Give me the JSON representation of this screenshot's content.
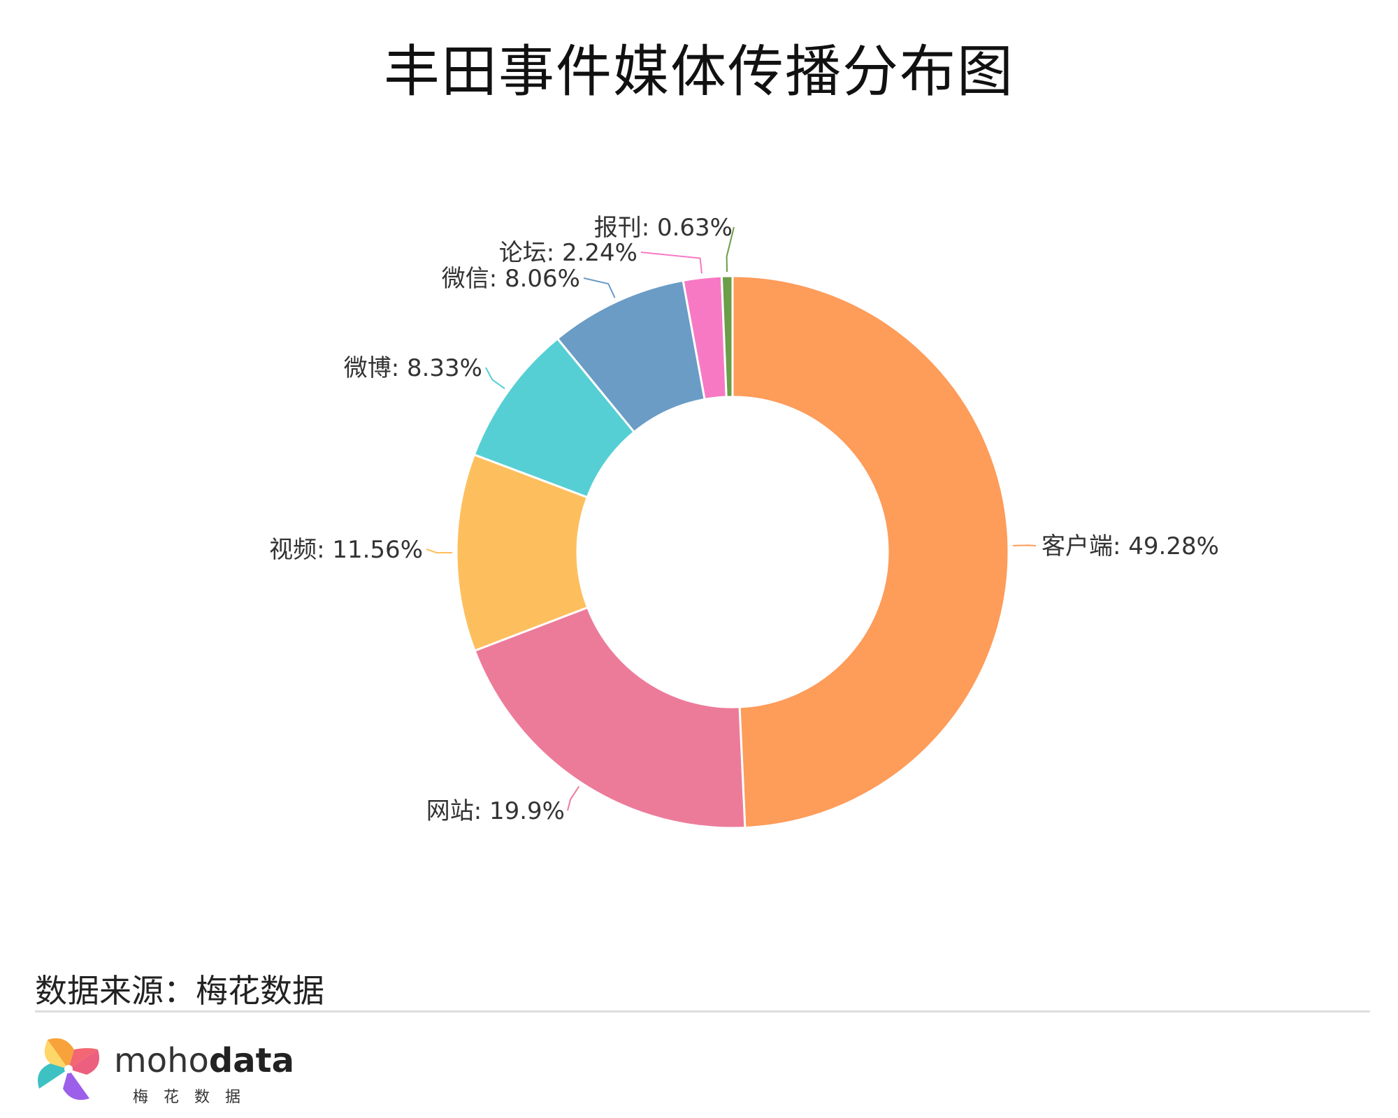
{
  "title": "丰田事件媒体传播分布图",
  "source": "数据来源：梅花数据",
  "logo": {
    "prefix": "moho",
    "suffix": "data",
    "subtitle": "梅花数据"
  },
  "chart_data": {
    "type": "pie",
    "donut": true,
    "slices": [
      {
        "name": "客户端",
        "value": 49.28,
        "label": "客户端: 49.28%",
        "color": "#FE9C5A"
      },
      {
        "name": "网站",
        "value": 19.9,
        "label": "网站: 19.9%",
        "color": "#EC7B9A"
      },
      {
        "name": "视频",
        "value": 11.56,
        "label": "视频: 11.56%",
        "color": "#FDBF5E"
      },
      {
        "name": "微博",
        "value": 8.33,
        "label": "微博: 8.33%",
        "color": "#56CFD4"
      },
      {
        "name": "微信",
        "value": 8.06,
        "label": "微信: 8.06%",
        "color": "#6A9CC5"
      },
      {
        "name": "论坛",
        "value": 2.24,
        "label": "论坛: 2.24%",
        "color": "#F779C4"
      },
      {
        "name": "报刊",
        "value": 0.63,
        "label": "报刊: 0.63%",
        "color": "#6B9E48"
      }
    ]
  }
}
